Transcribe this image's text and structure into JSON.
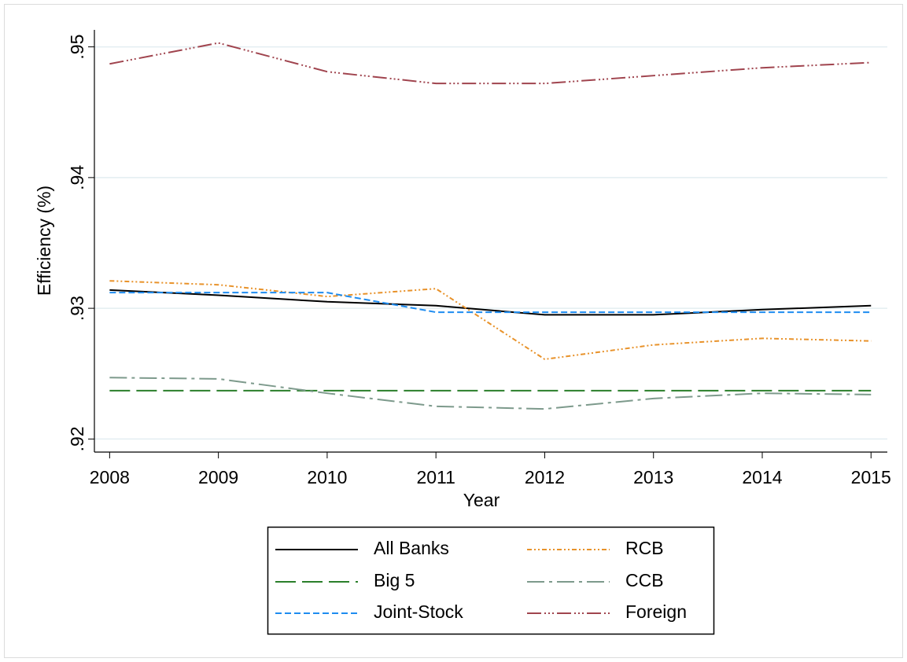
{
  "chart_data": {
    "type": "line",
    "x_label": "Year",
    "y_label": "Efficiency (%)",
    "x": [
      2008,
      2009,
      2010,
      2011,
      2012,
      2013,
      2014,
      2015
    ],
    "xlim": [
      2007.86,
      2015.15
    ],
    "xticks": [
      2008,
      2009,
      2010,
      2011,
      2012,
      2013,
      2014,
      2015
    ],
    "ylim": [
      0.919,
      0.9513
    ],
    "yticks": [
      {
        "value": 0.92,
        "label": ".92"
      },
      {
        "value": 0.93,
        "label": ".93"
      },
      {
        "value": 0.94,
        "label": ".94"
      },
      {
        "value": 0.95,
        "label": ".95"
      }
    ],
    "grid": true,
    "legend": "bottom",
    "series": [
      {
        "name": "All Banks",
        "color": "#000000",
        "values": [
          0.9314,
          0.931,
          0.9305,
          0.9302,
          0.9295,
          0.9295,
          0.9299,
          0.9302
        ]
      },
      {
        "name": "RCB",
        "color": "#e8922a",
        "values": [
          0.9321,
          0.9318,
          0.9309,
          0.9315,
          0.9261,
          0.9272,
          0.9277,
          0.9275
        ]
      },
      {
        "name": "Big 5",
        "color": "#2a7f2a",
        "values": [
          0.9237,
          0.9237,
          0.9237,
          0.9237,
          0.9237,
          0.9237,
          0.9237,
          0.9237
        ]
      },
      {
        "name": "CCB",
        "color": "#7d9a8c",
        "values": [
          0.9247,
          0.9246,
          0.9235,
          0.9225,
          0.9223,
          0.9231,
          0.9235,
          0.9234
        ]
      },
      {
        "name": "Joint-Stock",
        "color": "#1e8cf0",
        "values": [
          0.9312,
          0.9312,
          0.9312,
          0.9297,
          0.9297,
          0.9297,
          0.9297,
          0.9297
        ]
      },
      {
        "name": "Foreign",
        "color": "#a0444e",
        "values": [
          0.9487,
          0.9503,
          0.9481,
          0.9472,
          0.9472,
          0.9478,
          0.9484,
          0.9488
        ]
      }
    ]
  }
}
